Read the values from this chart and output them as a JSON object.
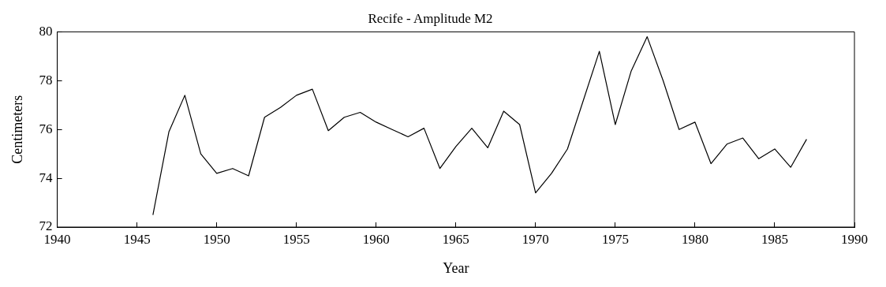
{
  "chart_data": {
    "type": "line",
    "title": "Recife - Amplitude M2",
    "xlabel": "Year",
    "ylabel": "Centimeters",
    "x": [
      1946,
      1947,
      1948,
      1949,
      1950,
      1951,
      1952,
      1953,
      1954,
      1955,
      1956,
      1957,
      1958,
      1959,
      1960,
      1961,
      1962,
      1963,
      1964,
      1965,
      1966,
      1967,
      1968,
      1969,
      1970,
      1971,
      1972,
      1973,
      1974,
      1975,
      1976,
      1977,
      1978,
      1979,
      1980,
      1981,
      1982,
      1983,
      1984,
      1985,
      1986,
      1987
    ],
    "series": [
      {
        "color": "#000000",
        "values": [
          72.5,
          75.9,
          77.4,
          75.0,
          74.2,
          74.4,
          74.1,
          76.5,
          76.9,
          77.4,
          77.65,
          75.95,
          76.5,
          76.7,
          76.3,
          76.0,
          75.7,
          76.05,
          74.4,
          75.3,
          76.05,
          75.25,
          76.75,
          76.2,
          73.4,
          74.2,
          75.2,
          77.2,
          79.2,
          76.2,
          78.4,
          79.8,
          78.0,
          76.0,
          76.3,
          74.6,
          75.4,
          75.65,
          74.8,
          75.2,
          74.45,
          75.6
        ]
      }
    ],
    "xlim": [
      1940,
      1990
    ],
    "xticks": [
      1940,
      1945,
      1950,
      1955,
      1960,
      1965,
      1970,
      1975,
      1980,
      1985,
      1990
    ],
    "ylim": [
      72,
      80
    ],
    "yticks": [
      72,
      74,
      76,
      78,
      80
    ],
    "grid": false,
    "legend": false,
    "marker": "none",
    "line_style": "solid"
  }
}
